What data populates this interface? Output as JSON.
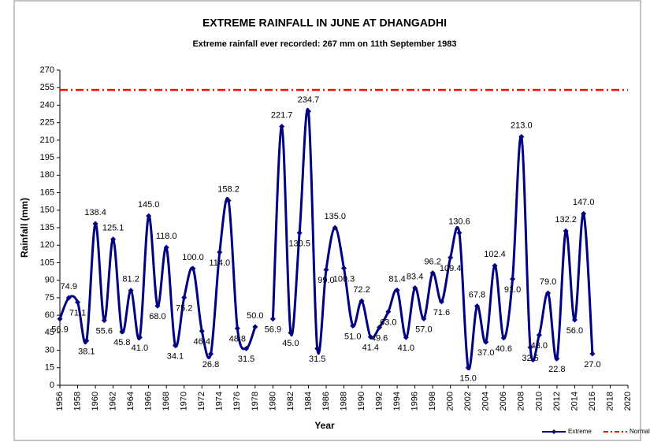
{
  "chart_data": {
    "type": "line",
    "title": "EXTREME RAINFALL  IN JUNE AT DHANGADHI",
    "subtitle": "Extreme rainfall ever recorded: 267 mm on 11th  September 1983",
    "x_label": "Year",
    "y_label": "Rainfall (mm)",
    "x": [
      1956,
      1957,
      1958,
      1959,
      1960,
      1961,
      1962,
      1963,
      1964,
      1965,
      1966,
      1967,
      1968,
      1969,
      1970,
      1971,
      1972,
      1973,
      1974,
      1975,
      1976,
      1977,
      1978,
      1979,
      1980,
      1981,
      1982,
      1983,
      1984,
      1985,
      1986,
      1987,
      1988,
      1989,
      1990,
      1991,
      1992,
      1993,
      1994,
      1995,
      1996,
      1997,
      1998,
      1999,
      2000,
      2001,
      2002,
      2003,
      2004,
      2005,
      2006,
      2007,
      2008,
      2009,
      2010,
      2011,
      2012,
      2013,
      2014,
      2015,
      2016
    ],
    "series": [
      {
        "name": "Extreme",
        "color": "#000080",
        "values": [
          56.9,
          74.9,
          71.1,
          38.1,
          138.4,
          55.6,
          125.1,
          45.8,
          81.2,
          41.0,
          145.0,
          68.0,
          118.0,
          34.1,
          75.2,
          100.0,
          46.4,
          26.8,
          114.0,
          158.2,
          48.8,
          31.5,
          50.0,
          null,
          56.9,
          221.7,
          45.0,
          130.5,
          234.7,
          31.5,
          99.0,
          135.0,
          100.3,
          51.0,
          72.2,
          41.4,
          49.6,
          63.0,
          81.4,
          41.0,
          83.4,
          57.0,
          96.2,
          71.6,
          109.4,
          130.6,
          15.0,
          67.8,
          37.0,
          102.4,
          40.6,
          91.0,
          213.0,
          32.5,
          43.0,
          79.0,
          22.8,
          132.2,
          56.0,
          147.0,
          27.0
        ],
        "value_labels": [
          "56.9",
          "74.9",
          "71.1",
          "38.1",
          "138.4",
          "55.6",
          "125.1",
          "45.8",
          "81.2",
          "41.0",
          "145.0",
          "68.0",
          "118.0",
          "34.1",
          "75.2",
          "100.0",
          "46.4",
          "26.8",
          "114.0",
          "158.2",
          "48.8",
          "31.5",
          "50.0",
          null,
          "56.9",
          "221.7",
          "45.0",
          "130.5",
          "234.7",
          "31.5",
          "99.0",
          "135.0",
          "100.3",
          "51.0",
          "72.2",
          "41.4",
          "49.6",
          "63.0",
          "81.4",
          "41.0",
          "83.4",
          "57.0",
          "96.2",
          "71.6",
          "109.4",
          "130.6",
          "15.0",
          "67.8",
          "37.0",
          "102.4",
          "40.6",
          "91.0",
          "213.0",
          "32.5",
          "43.0",
          "79.0",
          "22.8",
          "132.2",
          "56.0",
          "147.0",
          "27.0"
        ]
      },
      {
        "name": "Normal",
        "color": "#ff0000",
        "constant": 253
      }
    ],
    "xlim": [
      1956,
      2020
    ],
    "xticks": [
      1956,
      1958,
      1960,
      1962,
      1964,
      1966,
      1968,
      1970,
      1972,
      1974,
      1976,
      1978,
      1980,
      1982,
      1984,
      1986,
      1988,
      1990,
      1992,
      1994,
      1996,
      1998,
      2000,
      2002,
      2004,
      2006,
      2008,
      2010,
      2012,
      2014,
      2016,
      2018,
      2020
    ],
    "ylim": [
      0,
      270
    ],
    "yticks": [
      0,
      15,
      30,
      45,
      60,
      75,
      90,
      105,
      120,
      135,
      150,
      165,
      180,
      195,
      210,
      225,
      240,
      255,
      270
    ],
    "smooth": true,
    "legend": "bottom-right"
  }
}
